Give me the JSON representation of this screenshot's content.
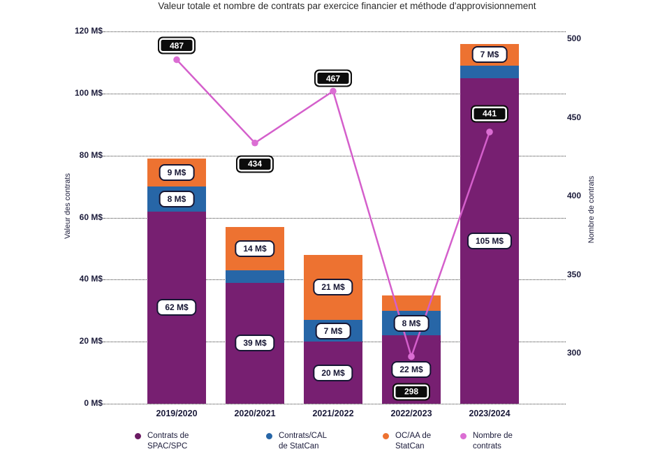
{
  "chart_title": "Valeur totale et nombre de contrats par exercice financier et méthode d'approvisionnement",
  "chart_data": {
    "type": "combo",
    "bar_mode": "stacked",
    "grid": "dotted-horizontal",
    "categories": [
      "2019/2020",
      "2020/2021",
      "2021/2022",
      "2022/2023",
      "2023/2024"
    ],
    "series": [
      {
        "name": "Contrats de SPAC/SPC",
        "role": "bar",
        "color": "#771F71",
        "values": [
          62,
          39,
          20,
          22,
          105
        ],
        "labels": [
          "62 M$",
          "39 M$",
          "20 M$",
          "22 M$",
          "105 M$"
        ]
      },
      {
        "name": "Contrats/CAL de StatCan",
        "role": "bar",
        "color": "#2766A7",
        "values": [
          8,
          4,
          7,
          8,
          4
        ],
        "labels": [
          "8 M$",
          null,
          "7 M$",
          "8 M$",
          null
        ]
      },
      {
        "name": "OC/AA de StatCan",
        "role": "bar",
        "color": "#ED7231",
        "values": [
          9,
          14,
          21,
          5,
          7
        ],
        "labels": [
          "9 M$",
          "14 M$",
          "21 M$",
          null,
          "7 M$"
        ]
      },
      {
        "name": "Nombre de contrats",
        "role": "line",
        "color": "#D45FCB",
        "marker_color": "#DB6ED3",
        "values": [
          487,
          434,
          467,
          298,
          441
        ],
        "labels": [
          "487",
          "434",
          "467",
          "298",
          "441"
        ],
        "label_dy": [
          -20,
          30,
          -18,
          50,
          -26
        ]
      }
    ],
    "left_axis": {
      "title": "Valeur des contrats",
      "ticks": [
        "0 M$",
        "20 M$",
        "40 M$",
        "60 M$",
        "80 M$",
        "100 M$",
        "120 M$"
      ],
      "tick_values": [
        0,
        20,
        40,
        60,
        80,
        100,
        120
      ],
      "range": [
        0,
        120
      ]
    },
    "right_axis": {
      "title": "Nombre de contrats",
      "ticks": [
        "300",
        "350",
        "400",
        "450",
        "500"
      ],
      "tick_values": [
        300,
        350,
        400,
        450,
        500
      ],
      "range": [
        268,
        505
      ]
    },
    "legend": [
      {
        "line1": "Contrats de",
        "line2": "SPAC/SPC",
        "color": "#6B1B63"
      },
      {
        "line1": "Contrats/CAL",
        "line2": "de StatCan",
        "color": "#2766A7"
      },
      {
        "line1": "OC/AA de",
        "line2": "StatCan",
        "color": "#ED7231"
      },
      {
        "line1": "Nombre de",
        "line2": "contrats",
        "color": "#DB6ED3"
      }
    ]
  }
}
